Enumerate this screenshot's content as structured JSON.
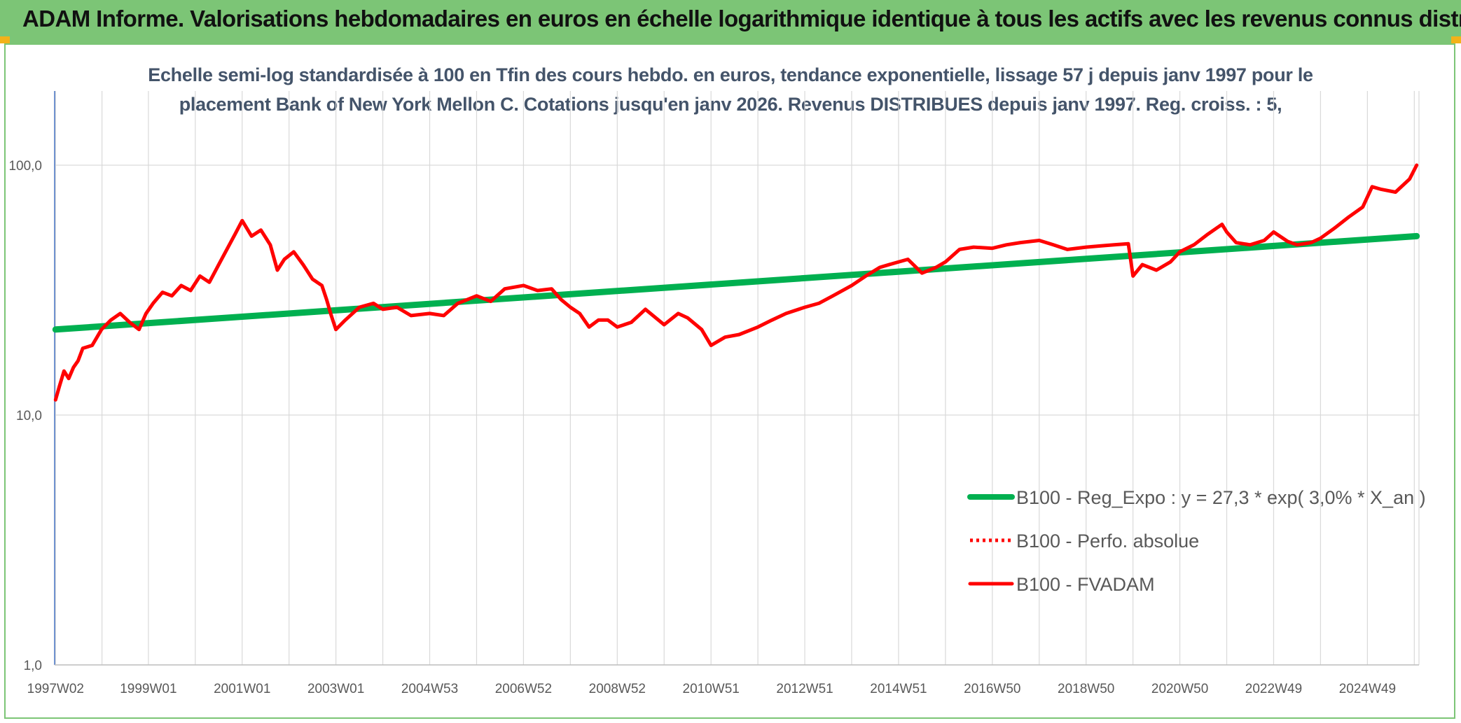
{
  "header": {
    "title": "ADAM Informe. Valorisations hebdomadaires en euros en échelle logarithmique identique à tous les actifs avec les revenus connus distribués"
  },
  "chart_data": {
    "type": "line",
    "title_line1": "Echelle semi-log standardisée à 100 en Tfin des cours hebdo. en euros, tendance exponentielle, lissage 57 j depuis janv 1997 pour le",
    "title_line2": "placement Bank of New York Mellon C. Cotations jusqu'en janv 2026. Revenus DISTRIBUES depuis janv 1997. Reg. croiss. : 5,",
    "xlabel": "",
    "ylabel": "",
    "y_scale": "log",
    "ylim": [
      1,
      180
    ],
    "xlim": [
      1997.0,
      2026.1
    ],
    "grid": true,
    "legend_position": "center-right",
    "y_ticks": [
      {
        "value": 1,
        "label": "1,0"
      },
      {
        "value": 10,
        "label": "10,0"
      },
      {
        "value": 100,
        "label": "100,0"
      }
    ],
    "x_ticks": [
      {
        "value": 1997.02,
        "label": "1997W02"
      },
      {
        "value": 1999.0,
        "label": "1999W01"
      },
      {
        "value": 2001.0,
        "label": "2001W01"
      },
      {
        "value": 2003.0,
        "label": "2003W01"
      },
      {
        "value": 2005.0,
        "label": "2004W53"
      },
      {
        "value": 2007.0,
        "label": "2006W52"
      },
      {
        "value": 2009.0,
        "label": "2008W52"
      },
      {
        "value": 2011.0,
        "label": "2010W51"
      },
      {
        "value": 2013.0,
        "label": "2012W51"
      },
      {
        "value": 2015.0,
        "label": "2014W51"
      },
      {
        "value": 2017.0,
        "label": "2016W50"
      },
      {
        "value": 2019.0,
        "label": "2018W50"
      },
      {
        "value": 2021.0,
        "label": "2020W50"
      },
      {
        "value": 2023.0,
        "label": "2022W49"
      },
      {
        "value": 2025.0,
        "label": "2024W49"
      }
    ],
    "series": [
      {
        "name": "B100 - Reg_Expo : y = 27,3 * exp( 3,0% *  X_an )",
        "color": "#00b050",
        "style": "solid-thick",
        "x": [
          1997.02,
          2026.05
        ],
        "values": [
          22.0,
          52.0
        ]
      },
      {
        "name": "B100 - Perfo. absolue",
        "color": "#ff0000",
        "style": "dotted",
        "x": [],
        "values": []
      },
      {
        "name": "B100 - FVADAM",
        "color": "#ff0000",
        "style": "solid",
        "x": [
          1997.02,
          1997.1,
          1997.2,
          1997.3,
          1997.4,
          1997.5,
          1997.6,
          1997.8,
          1998.0,
          1998.2,
          1998.4,
          1998.6,
          1998.8,
          1998.95,
          1999.1,
          1999.3,
          1999.5,
          1999.7,
          1999.9,
          2000.1,
          2000.3,
          2000.5,
          2000.7,
          2000.85,
          2001.0,
          2001.2,
          2001.4,
          2001.6,
          2001.75,
          2001.9,
          2002.1,
          2002.3,
          2002.5,
          2002.7,
          2002.8,
          2002.9,
          2003.0,
          2003.2,
          2003.5,
          2003.8,
          2004.0,
          2004.3,
          2004.6,
          2005.0,
          2005.3,
          2005.6,
          2006.0,
          2006.3,
          2006.6,
          2007.0,
          2007.3,
          2007.6,
          2007.8,
          2008.0,
          2008.2,
          2008.4,
          2008.6,
          2008.8,
          2009.0,
          2009.3,
          2009.6,
          2010.0,
          2010.3,
          2010.5,
          2010.8,
          2011.0,
          2011.3,
          2011.6,
          2012.0,
          2012.3,
          2012.6,
          2013.0,
          2013.3,
          2013.6,
          2014.0,
          2014.3,
          2014.6,
          2014.9,
          2015.2,
          2015.5,
          2015.8,
          2016.0,
          2016.3,
          2016.6,
          2017.0,
          2017.3,
          2017.6,
          2018.0,
          2018.3,
          2018.6,
          2019.0,
          2019.3,
          2019.6,
          2019.9,
          2020.0,
          2020.2,
          2020.5,
          2020.8,
          2021.0,
          2021.3,
          2021.6,
          2021.9,
          2022.0,
          2022.2,
          2022.5,
          2022.8,
          2023.0,
          2023.3,
          2023.5,
          2023.8,
          2024.0,
          2024.3,
          2024.6,
          2024.9,
          2025.1,
          2025.3,
          2025.6,
          2025.9,
          2026.05
        ],
        "values": [
          11.5,
          13.0,
          15.0,
          14.0,
          15.5,
          16.5,
          18.5,
          19.0,
          22.0,
          24.0,
          25.5,
          23.5,
          22.0,
          25.5,
          28.0,
          31.0,
          30.0,
          33.0,
          31.5,
          36.0,
          34.0,
          40.0,
          47.0,
          53.0,
          60.0,
          52.0,
          55.0,
          48.0,
          38.0,
          42.0,
          45.0,
          40.0,
          35.0,
          33.0,
          29.0,
          25.0,
          22.0,
          24.0,
          27.0,
          28.0,
          26.5,
          27.0,
          25.0,
          25.5,
          25.0,
          28.0,
          30.0,
          28.5,
          32.0,
          33.0,
          31.5,
          32.0,
          29.0,
          27.0,
          25.5,
          22.5,
          24.0,
          24.0,
          22.5,
          23.5,
          26.5,
          23.0,
          25.5,
          24.5,
          22.0,
          19.0,
          20.5,
          21.0,
          22.5,
          24.0,
          25.5,
          27.0,
          28.0,
          30.0,
          33.0,
          36.0,
          39.0,
          40.5,
          42.0,
          37.0,
          39.0,
          41.0,
          46.0,
          47.0,
          46.5,
          48.0,
          49.0,
          50.0,
          48.0,
          46.0,
          47.0,
          47.5,
          48.0,
          48.5,
          36.0,
          40.0,
          38.0,
          41.0,
          45.0,
          48.0,
          53.0,
          58.0,
          54.0,
          49.0,
          48.0,
          50.0,
          54.0,
          49.5,
          48.0,
          49.0,
          51.0,
          56.0,
          62.0,
          68.0,
          82.0,
          80.0,
          78.0,
          88.0,
          100.0
        ]
      }
    ]
  }
}
